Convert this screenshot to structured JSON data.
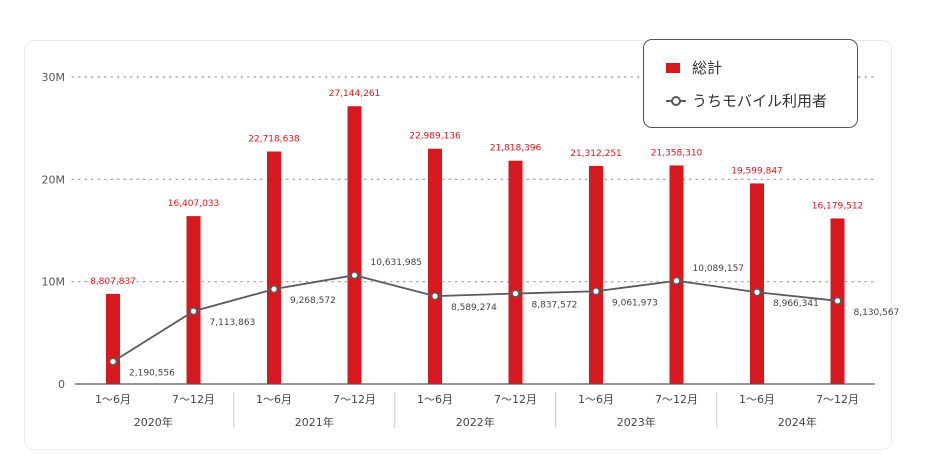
{
  "chart_data": {
    "type": "bar",
    "categories": [
      "1〜6月",
      "7〜12月",
      "1〜6月",
      "7〜12月",
      "1〜6月",
      "7〜12月",
      "1〜6月",
      "7〜12月",
      "1〜6月",
      "7〜12月"
    ],
    "groups": [
      "2020年",
      "2021年",
      "2022年",
      "2023年",
      "2024年"
    ],
    "yticks": [
      "0",
      "10M",
      "20M",
      "30M"
    ],
    "ylim": [
      0,
      30000000
    ],
    "grid": true,
    "legend_position": "top-right",
    "series": [
      {
        "name": "総計",
        "type": "bar",
        "color": "#d7191f",
        "values": [
          8807837,
          16407033,
          22718638,
          27144261,
          22989136,
          21818396,
          21312251,
          21358310,
          19599847,
          16179512
        ],
        "labels": [
          "8,807,837",
          "16,407,033",
          "22,718,638",
          "27,144,261",
          "22,989,136",
          "21,818,396",
          "21,312,251",
          "21,358,310",
          "19,599,847",
          "16,179,512"
        ]
      },
      {
        "name": "うちモバイル利用者",
        "type": "line",
        "color": "#5a5a5a",
        "values": [
          2190556,
          7113863,
          9268572,
          10631985,
          8589274,
          8837572,
          9061973,
          10089157,
          8966341,
          8130567
        ],
        "labels": [
          "2,190,556",
          "7,113,863",
          "9,268,572",
          "10,631,985",
          "8,589,274",
          "8,837,572",
          "9,061,973",
          "10,089,157",
          "8,966,341",
          "8,130,567"
        ]
      }
    ]
  }
}
